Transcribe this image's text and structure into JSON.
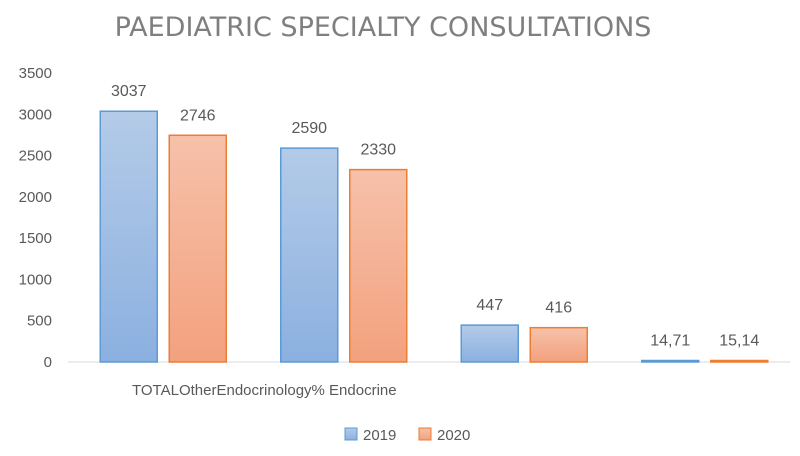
{
  "chart_data": {
    "type": "bar",
    "title": "PAEDIATRIC SPECIALTY CONSULTATIONS",
    "categories_label": "TOTALOtherEndocrinology% Endocrine",
    "category_count": 4,
    "series": [
      {
        "name": "2019",
        "values": [
          3037,
          2590,
          447,
          14.71
        ],
        "labels": [
          "3037",
          "2590",
          "447",
          "14,71"
        ]
      },
      {
        "name": "2020",
        "values": [
          2746,
          2330,
          416,
          15.14
        ],
        "labels": [
          "2746",
          "2330",
          "416",
          "15,14"
        ]
      }
    ],
    "ylim": [
      0,
      3500
    ],
    "yticks": [
      0,
      500,
      1000,
      1500,
      2000,
      2500,
      3000,
      3500
    ],
    "grid": false,
    "legend_position": "bottom",
    "colors": {
      "2019": {
        "top": "#b4cbe8",
        "bottom": "#8bb0e0",
        "stroke": "#5b9bd5"
      },
      "2020": {
        "top": "#f6c1aa",
        "bottom": "#f3a17e",
        "stroke": "#ed7d31"
      },
      "axis": "#d9d9d9",
      "text": "#595959"
    }
  }
}
